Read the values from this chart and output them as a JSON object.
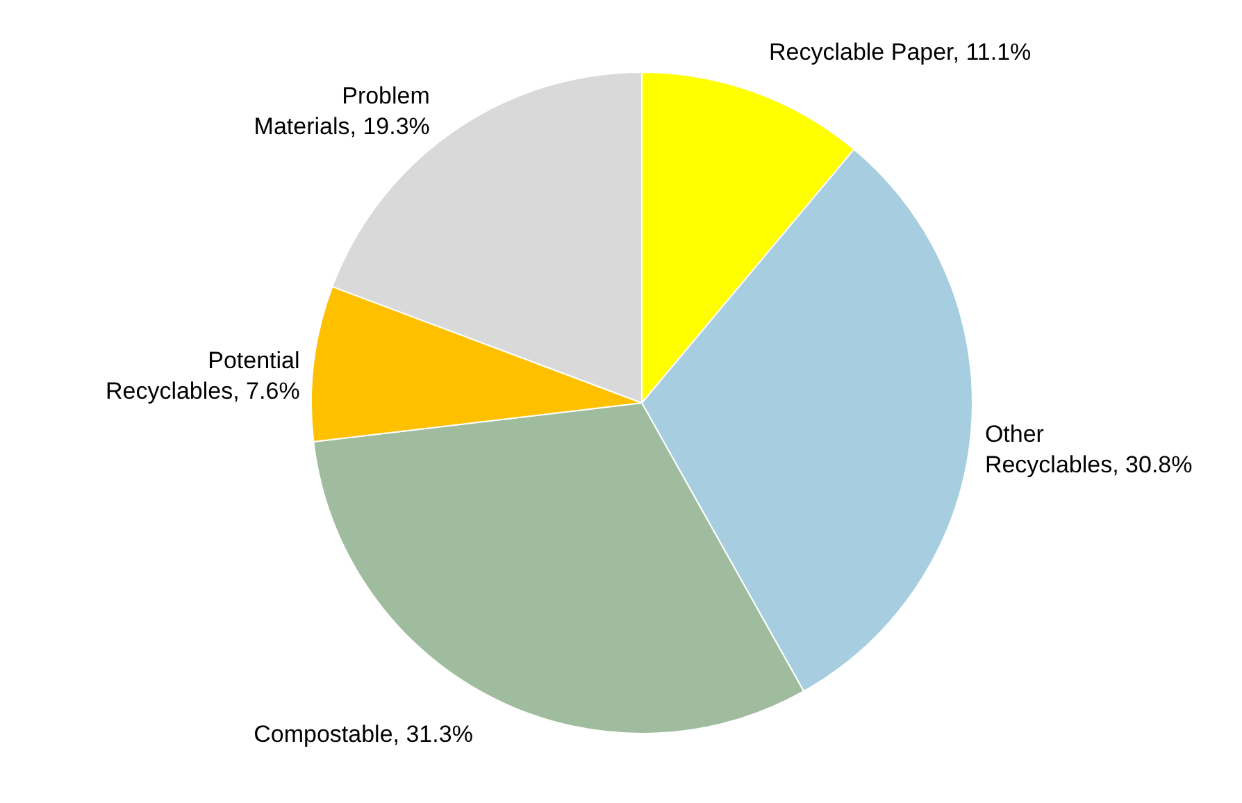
{
  "chart_data": {
    "type": "pie",
    "categories": [
      "Recyclable Paper",
      "Other Recyclables",
      "Compostable",
      "Potential Recyclables",
      "Problem Materials"
    ],
    "values": [
      11.1,
      30.8,
      31.3,
      7.6,
      19.3
    ],
    "value_labels": [
      "11.1%",
      "30.8%",
      "31.3%",
      "7.6%",
      "19.3%"
    ],
    "colors": [
      "#ffff00",
      "#a6cee0",
      "#a0bc9e",
      "#ffc000",
      "#d9d9d9"
    ]
  }
}
